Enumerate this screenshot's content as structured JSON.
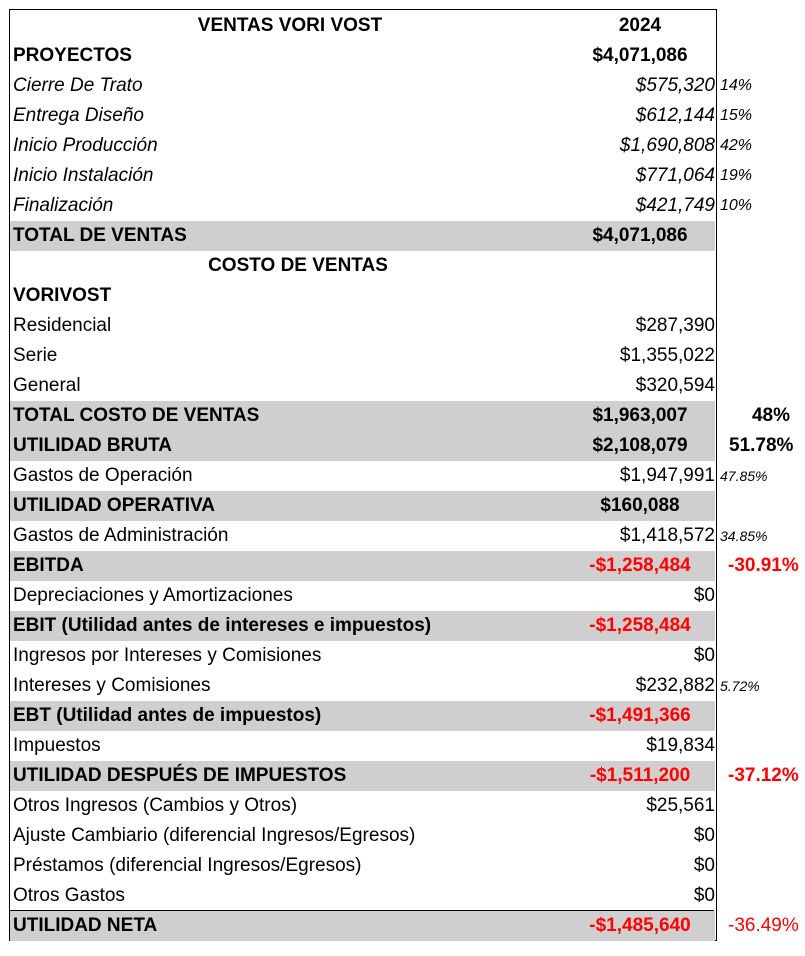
{
  "header": {
    "title": "VENTAS VORI VOST",
    "year": "2024"
  },
  "proyectos": {
    "label": "PROYECTOS",
    "amount": "$4,071,086"
  },
  "stages": [
    {
      "label": "Cierre De Trato",
      "amount": "$575,320",
      "pct": "14%"
    },
    {
      "label": "Entrega Diseño",
      "amount": "$612,144",
      "pct": "15%"
    },
    {
      "label": "Inicio Producción",
      "amount": "$1,690,808",
      "pct": "42%"
    },
    {
      "label": "Inicio Instalación",
      "amount": "$771,064",
      "pct": "19%"
    },
    {
      "label": "Finalización",
      "amount": "$421,749",
      "pct": "10%"
    }
  ],
  "total_ventas": {
    "label": "TOTAL DE VENTAS",
    "amount": "$4,071,086"
  },
  "costo_header": "COSTO DE VENTAS",
  "vorivost": "VORIVOST",
  "costos": [
    {
      "label": "Residencial",
      "amount": "$287,390"
    },
    {
      "label": "Serie",
      "amount": "$1,355,022"
    },
    {
      "label": "General",
      "amount": "$320,594"
    }
  ],
  "total_costo": {
    "label": "TOTAL COSTO DE VENTAS",
    "amount": "$1,963,007",
    "pct": "48%"
  },
  "utilidad_bruta": {
    "label": "UTILIDAD BRUTA",
    "amount": "$2,108,079",
    "pct": "51.78%"
  },
  "gastos_operacion": {
    "label": "Gastos de Operación",
    "amount": "$1,947,991",
    "pct": "47.85%"
  },
  "utilidad_operativa": {
    "label": "UTILIDAD OPERATIVA",
    "amount": "$160,088"
  },
  "gastos_admin": {
    "label": "Gastos de Administración",
    "amount": "$1,418,572",
    "pct": "34.85%"
  },
  "ebitda": {
    "label": "EBITDA",
    "amount": "-$1,258,484",
    "pct": "-30.91%"
  },
  "depreciaciones": {
    "label": "Depreciaciones y Amortizaciones",
    "amount": "$0"
  },
  "ebit": {
    "label": "EBIT (Utilidad antes de intereses e impuestos)",
    "amount": "-$1,258,484"
  },
  "ingresos_intereses": {
    "label": "Ingresos por Intereses y Comisiones",
    "amount": "$0"
  },
  "intereses": {
    "label": "Intereses y Comisiones",
    "amount": "$232,882",
    "pct": "5.72%"
  },
  "ebt": {
    "label": "EBT (Utilidad antes de impuestos)",
    "amount": "-$1,491,366"
  },
  "impuestos": {
    "label": "Impuestos",
    "amount": "$19,834"
  },
  "utilidad_despues": {
    "label": "UTILIDAD DESPUÉS DE IMPUESTOS",
    "amount": "-$1,511,200",
    "pct": "-37.12%"
  },
  "otros_ingresos": {
    "label": "Otros Ingresos (Cambios y Otros)",
    "amount": "$25,561"
  },
  "ajuste_cambiario": {
    "label": "Ajuste Cambiario (diferencial Ingresos/Egresos)",
    "amount": "$0"
  },
  "prestamos": {
    "label": "Préstamos (diferencial Ingresos/Egresos)",
    "amount": "$0"
  },
  "otros_gastos": {
    "label": "Otros Gastos",
    "amount": "$0"
  },
  "utilidad_neta": {
    "label": "UTILIDAD NETA",
    "amount": "-$1,485,640",
    "pct": "-36.49%"
  },
  "colors": {
    "shade": "#d0cece",
    "negative": "#ff0000"
  }
}
